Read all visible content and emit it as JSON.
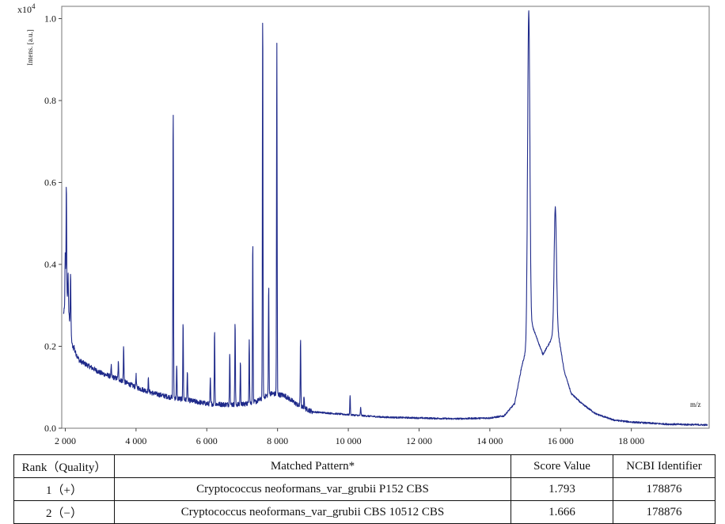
{
  "chart_data": {
    "type": "line",
    "ylabel": "Intens. [a.u.]",
    "y_multiplier": "x10",
    "y_multiplier_exp": "4",
    "xlabel": "m/z",
    "xlim": [
      1900,
      20200
    ],
    "ylim": [
      0,
      1.03
    ],
    "x_ticks": [
      2000,
      4000,
      6000,
      8000,
      10000,
      12000,
      14000,
      16000,
      18000
    ],
    "x_tick_labels": [
      "2 000",
      "4 000",
      "6 000",
      "8 000",
      "10 000",
      "12 000",
      "14 000",
      "16 000",
      "18 000"
    ],
    "y_ticks": [
      0.0,
      0.2,
      0.4,
      0.6,
      0.8,
      1.0
    ],
    "y_tick_labels": [
      "0.0",
      "0.2",
      "0.4",
      "0.6",
      "0.8",
      "1.0"
    ],
    "grid": false,
    "line_color": "#1f2a8a",
    "series": [
      {
        "baseline": [
          [
            1950,
            0.28
          ],
          [
            2050,
            0.32
          ],
          [
            2200,
            0.2
          ],
          [
            2400,
            0.165
          ],
          [
            3000,
            0.135
          ],
          [
            3500,
            0.12
          ],
          [
            4000,
            0.1
          ],
          [
            4500,
            0.085
          ],
          [
            5000,
            0.075
          ],
          [
            5500,
            0.068
          ],
          [
            6000,
            0.06
          ],
          [
            6500,
            0.058
          ],
          [
            7000,
            0.058
          ],
          [
            7400,
            0.065
          ],
          [
            7800,
            0.085
          ],
          [
            8200,
            0.08
          ],
          [
            8600,
            0.055
          ],
          [
            9000,
            0.04
          ],
          [
            10000,
            0.033
          ],
          [
            11000,
            0.027
          ],
          [
            12000,
            0.025
          ],
          [
            13000,
            0.023
          ],
          [
            14000,
            0.025
          ],
          [
            14400,
            0.03
          ],
          [
            14700,
            0.06
          ],
          [
            14900,
            0.15
          ],
          [
            15200,
            0.25
          ],
          [
            15500,
            0.18
          ],
          [
            15700,
            0.21
          ],
          [
            15900,
            0.25
          ],
          [
            16100,
            0.14
          ],
          [
            16300,
            0.085
          ],
          [
            16600,
            0.06
          ],
          [
            17000,
            0.035
          ],
          [
            17500,
            0.02
          ],
          [
            18000,
            0.015
          ],
          [
            19000,
            0.01
          ],
          [
            20150,
            0.008
          ]
        ],
        "peaks": [
          [
            2030,
            0.6
          ],
          [
            2000,
            0.43
          ],
          [
            2080,
            0.38
          ],
          [
            2150,
            0.38
          ],
          [
            2250,
            0.2
          ],
          [
            3300,
            0.15
          ],
          [
            3500,
            0.16
          ],
          [
            3650,
            0.2
          ],
          [
            4000,
            0.13
          ],
          [
            4350,
            0.12
          ],
          [
            5050,
            0.78
          ],
          [
            5150,
            0.15
          ],
          [
            5330,
            0.26
          ],
          [
            5450,
            0.14
          ],
          [
            6100,
            0.12
          ],
          [
            6220,
            0.24
          ],
          [
            6650,
            0.19
          ],
          [
            6800,
            0.26
          ],
          [
            6950,
            0.16
          ],
          [
            7200,
            0.22
          ],
          [
            7300,
            0.46
          ],
          [
            7580,
            1.02
          ],
          [
            7750,
            0.35
          ],
          [
            7980,
            0.94
          ],
          [
            8650,
            0.22
          ],
          [
            8750,
            0.08
          ],
          [
            10050,
            0.08
          ],
          [
            10350,
            0.05
          ],
          [
            15100,
            1.02
          ],
          [
            15850,
            0.54
          ]
        ]
      }
    ]
  },
  "table": {
    "headers": [
      "Rank（Quality）",
      "Matched Pattern*",
      "Score Value",
      "NCBI Identifier"
    ],
    "rows": [
      [
        "1（+）",
        "Cryptococcus neoformans_var_grubii P152 CBS",
        "1.793",
        "178876"
      ],
      [
        "2（−）",
        "Cryptococcus neoformans_var_grubii CBS 10512 CBS",
        "1.666",
        "178876"
      ]
    ]
  }
}
